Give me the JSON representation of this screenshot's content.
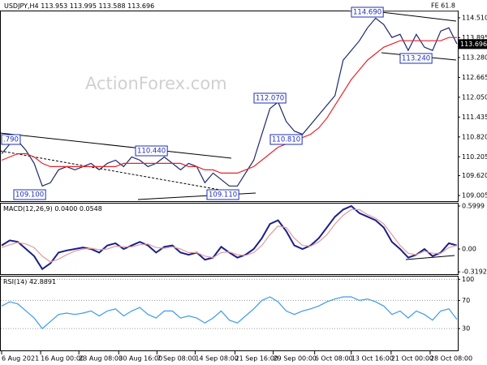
{
  "chart_data": [
    {
      "type": "line",
      "title": "USDJPY,H4",
      "ohlc": [
        113.953,
        113.995,
        113.588,
        113.696
      ],
      "watermark": "ActionForex.com",
      "fib_label": "FE 61.8",
      "annotations": [
        "114.690",
        "113.240",
        "112.070",
        "110.810",
        "110.440",
        "109.100",
        "109.110",
        ".790"
      ],
      "xlim": [
        0,
        56
      ],
      "ylim": [
        108.83,
        114.71
      ],
      "yticks": [
        {
          "value": 114.51,
          "label": "114.510"
        },
        113.895,
        {
          "value": 113.28,
          "label": "113.280"
        },
        112.665,
        {
          "value": 112.05,
          "label": "112.050"
        },
        111.435,
        {
          "value": 110.82,
          "label": "110.820"
        },
        110.205,
        {
          "value": 109.62,
          "label": "109.620"
        },
        109.005
      ],
      "series": [
        {
          "color": "#1c2a6b",
          "values": [
            110.3,
            110.6,
            110.7,
            110.4,
            110.0,
            109.3,
            109.4,
            109.8,
            109.9,
            109.8,
            109.9,
            110.0,
            109.8,
            110.0,
            110.1,
            109.9,
            110.2,
            110.1,
            109.9,
            110.0,
            110.2,
            110.0,
            109.8,
            110.0,
            109.9,
            109.4,
            109.7,
            109.5,
            109.3,
            109.3,
            109.7,
            110.1,
            110.9,
            111.7,
            111.9,
            111.3,
            111.0,
            110.9,
            111.2,
            111.5,
            111.8,
            112.1,
            113.2,
            113.5,
            113.8,
            114.2,
            114.5,
            114.3,
            113.9,
            114.0,
            113.5,
            114.0,
            113.6,
            113.5,
            114.1,
            114.2,
            113.7
          ]
        },
        {
          "color": "#e8242b",
          "values": [
            110.1,
            110.2,
            110.3,
            110.3,
            110.2,
            110.0,
            109.9,
            109.9,
            109.9,
            109.9,
            109.9,
            109.9,
            109.9,
            109.9,
            109.9,
            110.0,
            110.0,
            110.0,
            110.0,
            110.0,
            110.0,
            110.0,
            110.0,
            109.9,
            109.9,
            109.8,
            109.8,
            109.7,
            109.7,
            109.7,
            109.8,
            109.9,
            110.1,
            110.3,
            110.5,
            110.6,
            110.7,
            110.8,
            110.9,
            111.1,
            111.4,
            111.8,
            112.2,
            112.6,
            112.9,
            113.2,
            113.4,
            113.6,
            113.7,
            113.8,
            113.8,
            113.8,
            113.8,
            113.8,
            113.8,
            113.9,
            113.9
          ]
        }
      ]
    },
    {
      "type": "line",
      "title": "MACD(12,26,9)",
      "header_values": [
        0.04,
        0.0548
      ],
      "header_value_labels": [
        "0.0400",
        "0.0548"
      ],
      "xlim": [
        0,
        56
      ],
      "ylim": [
        -0.351,
        0.645
      ],
      "yticks": [
        0.5999,
        {
          "value": 0,
          "label": "0.00"
        },
        -0.3192
      ],
      "series": [
        {
          "color": "#1b1f8a",
          "values": [
            0.05,
            0.12,
            0.1,
            0.0,
            -0.1,
            -0.28,
            -0.2,
            -0.05,
            -0.02,
            0.0,
            0.02,
            0.0,
            -0.05,
            0.05,
            0.08,
            0.0,
            0.05,
            0.1,
            0.05,
            -0.05,
            0.03,
            0.05,
            -0.05,
            -0.08,
            -0.05,
            -0.15,
            -0.12,
            0.03,
            -0.05,
            -0.12,
            -0.08,
            0.0,
            0.15,
            0.35,
            0.4,
            0.25,
            0.05,
            0.0,
            0.05,
            0.15,
            0.3,
            0.45,
            0.55,
            0.6,
            0.5,
            0.45,
            0.4,
            0.3,
            0.1,
            0.0,
            -0.12,
            -0.08,
            0.0,
            -0.1,
            -0.05,
            0.08,
            0.05
          ]
        },
        {
          "color": "#e39a9a",
          "values": [
            0.02,
            0.06,
            0.09,
            0.07,
            0.02,
            -0.1,
            -0.18,
            -0.14,
            -0.08,
            -0.03,
            0.0,
            0.01,
            -0.01,
            0.0,
            0.04,
            0.03,
            0.03,
            0.06,
            0.07,
            0.02,
            0.01,
            0.03,
            0.0,
            -0.05,
            -0.05,
            -0.1,
            -0.12,
            -0.05,
            -0.04,
            -0.08,
            -0.09,
            -0.05,
            0.05,
            0.2,
            0.32,
            0.3,
            0.15,
            0.05,
            0.04,
            0.1,
            0.2,
            0.35,
            0.47,
            0.55,
            0.55,
            0.48,
            0.43,
            0.35,
            0.2,
            0.05,
            -0.06,
            -0.08,
            -0.03,
            -0.06,
            -0.06,
            0.02,
            0.05
          ]
        }
      ]
    },
    {
      "type": "line",
      "title": "RSI(14)",
      "header_values": [
        42.8891
      ],
      "xlim": [
        0,
        56
      ],
      "ylim": [
        -1,
        105
      ],
      "grid": true,
      "yticks": [
        100,
        70,
        30
      ],
      "xticks": [
        {
          "value": 0,
          "label": "6 Aug 2021"
        },
        {
          "value": 4.8,
          "label": "16 Aug 00:00"
        },
        {
          "value": 9.5,
          "label": "23 Aug 08:00"
        },
        {
          "value": 14.4,
          "label": "30 Aug 16:00"
        },
        {
          "value": 19.1,
          "label": "7 Sep 08:00"
        },
        {
          "value": 23.8,
          "label": "14 Sep 08:00"
        },
        {
          "value": 28.7,
          "label": "21 Sep 16:00"
        },
        {
          "value": 33.4,
          "label": "29 Sep 00:00"
        },
        {
          "value": 38.5,
          "label": "6 Oct 08:00"
        },
        {
          "value": 43,
          "label": "13 Oct 16:00"
        },
        {
          "value": 47.9,
          "label": "21 Oct 00:00"
        },
        {
          "value": 52.7,
          "label": "28 Oct 08:00"
        }
      ],
      "series": [
        {
          "color": "#3d9be9",
          "values": [
            62,
            68,
            65,
            55,
            45,
            30,
            40,
            50,
            52,
            50,
            52,
            55,
            48,
            55,
            58,
            48,
            55,
            60,
            50,
            45,
            55,
            55,
            45,
            48,
            45,
            38,
            45,
            55,
            42,
            38,
            48,
            58,
            70,
            75,
            68,
            55,
            50,
            55,
            58,
            62,
            68,
            72,
            75,
            75,
            70,
            72,
            68,
            62,
            50,
            55,
            45,
            55,
            50,
            42,
            55,
            58,
            43
          ]
        }
      ]
    }
  ]
}
